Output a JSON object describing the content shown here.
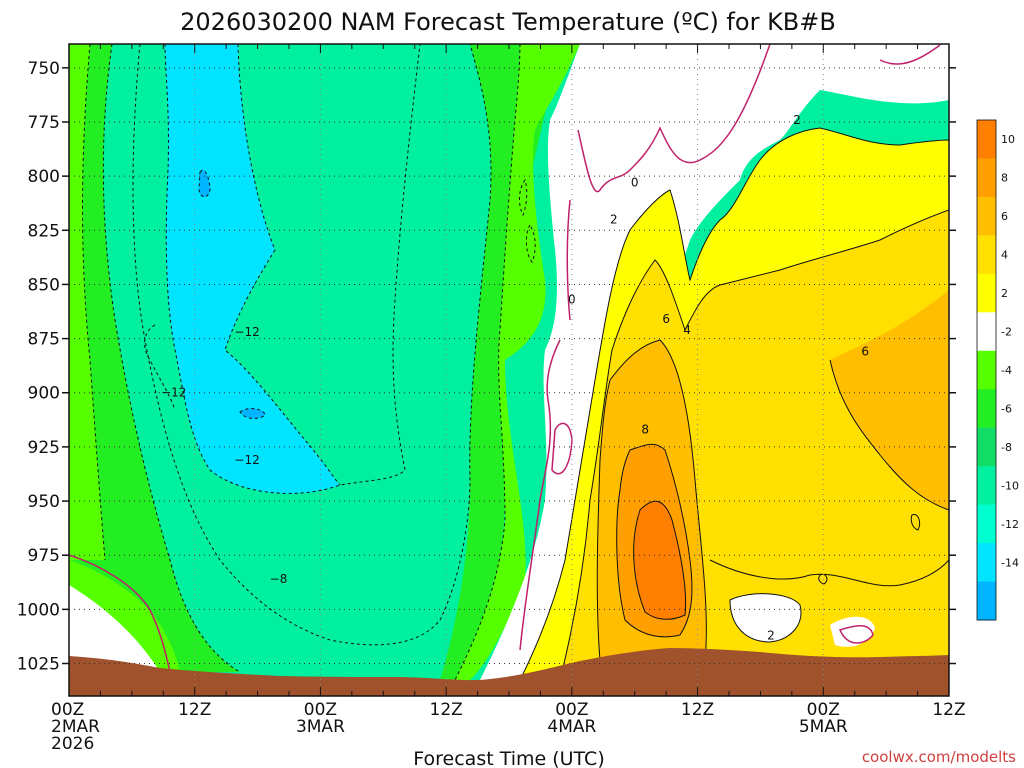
{
  "chart_data": {
    "type": "heatmap",
    "title": "2026030200 NAM Forecast Temperature (ºC) for KB#B",
    "xlabel": "Forecast Time (UTC)",
    "credit": "coolwx.com/modelts",
    "y_ticks": [
      "750",
      "775",
      "800",
      "825",
      "850",
      "875",
      "900",
      "925",
      "950",
      "975",
      "1000",
      "1025"
    ],
    "y_values": [
      750,
      775,
      800,
      825,
      850,
      875,
      900,
      925,
      950,
      975,
      1000,
      1025
    ],
    "ylim": [
      739,
      1040
    ],
    "xlim_hours": [
      0,
      84
    ],
    "x_ticks": [
      {
        "h": 0,
        "line1": "00Z",
        "line2": "2MAR",
        "line3": "2026"
      },
      {
        "h": 12,
        "line1": "12Z",
        "line2": "",
        "line3": ""
      },
      {
        "h": 24,
        "line1": "00Z",
        "line2": "3MAR",
        "line3": ""
      },
      {
        "h": 36,
        "line1": "12Z",
        "line2": "",
        "line3": ""
      },
      {
        "h": 48,
        "line1": "00Z",
        "line2": "4MAR",
        "line3": ""
      },
      {
        "h": 60,
        "line1": "12Z",
        "line2": "",
        "line3": ""
      },
      {
        "h": 72,
        "line1": "00Z",
        "line2": "5MAR",
        "line3": ""
      },
      {
        "h": 84,
        "line1": "12Z",
        "line2": "",
        "line3": ""
      }
    ],
    "grid": true,
    "legend_placement": "right",
    "colorbar": [
      {
        "label": "10",
        "color": "#ff7f00"
      },
      {
        "label": "8",
        "color": "#ff9f00"
      },
      {
        "label": "6",
        "color": "#ffbf00"
      },
      {
        "label": "4",
        "color": "#ffe000"
      },
      {
        "label": "2",
        "color": "#ffff00"
      },
      {
        "label": "-2",
        "color": "#ffffff"
      },
      {
        "label": "-4",
        "color": "#55ff00"
      },
      {
        "label": "-6",
        "color": "#22ee22"
      },
      {
        "label": "-8",
        "color": "#11dd66"
      },
      {
        "label": "-10",
        "color": "#00f0a0"
      },
      {
        "label": "-12",
        "color": "#00ffd0"
      },
      {
        "label": "-14",
        "color": "#00e4ff"
      },
      {
        "label": "",
        "color": "#00b4ff"
      }
    ],
    "terrain_color": "#a0522d",
    "contour_labels": [
      {
        "text": "0",
        "h": 54.0,
        "p": 803
      },
      {
        "text": "0",
        "h": 48.0,
        "p": 857
      },
      {
        "text": "2",
        "h": 52.0,
        "p": 820
      },
      {
        "text": "2",
        "h": 69.5,
        "p": 774
      },
      {
        "text": "2",
        "h": 67.0,
        "p": 1012
      },
      {
        "text": "4",
        "h": 59.0,
        "p": 871
      },
      {
        "text": "6",
        "h": 57.0,
        "p": 866
      },
      {
        "text": "6",
        "h": 76.0,
        "p": 881
      },
      {
        "text": "8",
        "h": 55.0,
        "p": 917
      },
      {
        "text": "−12",
        "h": 17.0,
        "p": 872
      },
      {
        "text": "−12",
        "h": 10.0,
        "p": 900
      },
      {
        "text": "−12",
        "h": 17.0,
        "p": 931
      },
      {
        "text": "−8",
        "h": 20.0,
        "p": 986
      }
    ]
  }
}
